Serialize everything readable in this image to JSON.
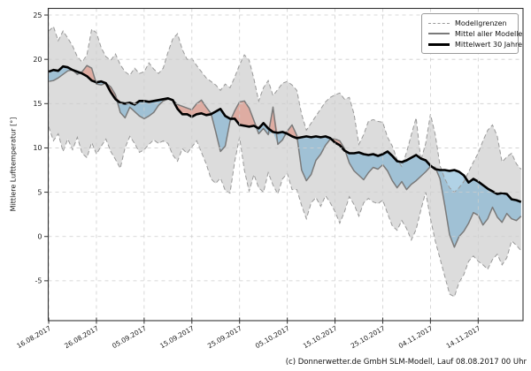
{
  "ylabel": "Mittlere Lufttemperatur [°]",
  "caption": "(c) Donnerwetter.de GmbH SLM-Modell, Lauf 08.08.2017 00 Uhr",
  "legend": {
    "items": [
      {
        "label": "Modellgrenzen",
        "style": "dashed-gray"
      },
      {
        "label": "Mittel aller Modelle",
        "style": "solid-gray"
      },
      {
        "label": "Mittelwert 30 Jahre",
        "style": "solid-black-thick"
      }
    ]
  },
  "chart_data": {
    "type": "line",
    "title": "",
    "xlabel": "",
    "ylabel": "Mittlere Lufttemperatur [°]",
    "x_unit": "days since 16.08.2017, one value per day",
    "x_tick_days": [
      0,
      10,
      20,
      30,
      40,
      50,
      60,
      70,
      80,
      90
    ],
    "x_tick_labels": [
      "16.08.2017",
      "26.08.2017",
      "05.09.2017",
      "15.09.2017",
      "25.09.2017",
      "05.10.2017",
      "15.10.2017",
      "25.10.2017",
      "04.11.2017",
      "14.11.2017"
    ],
    "y_ticks": [
      25,
      20,
      15,
      10,
      5,
      0,
      -5
    ],
    "ylim": [
      -9.5,
      25.75
    ],
    "xlim": [
      -0.1,
      99.4
    ],
    "grid": true,
    "legend_position": "upper right",
    "band_between": [
      "Modellgrenze oben",
      "Modellgrenze unten"
    ],
    "fill_rule": "blue where Mittel aller Modelle < Mittelwert 30 Jahre, red where above",
    "colors": {
      "band_fill": "#dcdcdc",
      "bound_line": "#999999",
      "mean_line": "#7a7a7a",
      "mean30_line": "#000000",
      "cold_fill": "#64a5cd",
      "warm_fill": "#e1705c",
      "grid": "#cdcdcd",
      "spine": "#333333"
    },
    "series": [
      {
        "name": "Modellgrenze oben",
        "values": [
          23.2,
          23.7,
          22.1,
          23.2,
          22.4,
          21.5,
          20.3,
          19.7,
          20.5,
          23.4,
          23.0,
          21.3,
          20.3,
          19.9,
          20.6,
          19.4,
          18.6,
          18.2,
          19.0,
          18.4,
          18.6,
          19.6,
          18.9,
          18.4,
          19.0,
          20.8,
          22.3,
          22.9,
          21.1,
          20.0,
          20.1,
          19.3,
          18.6,
          17.9,
          17.5,
          17.1,
          16.5,
          17.2,
          16.8,
          18.0,
          19.4,
          20.5,
          19.9,
          17.8,
          15.3,
          16.8,
          17.6,
          15.9,
          16.6,
          17.3,
          17.5,
          17.1,
          16.5,
          13.8,
          12.0,
          12.8,
          13.6,
          14.4,
          15.2,
          15.7,
          16.0,
          16.2,
          15.5,
          15.7,
          13.8,
          10.4,
          11.5,
          13.0,
          13.2,
          13.0,
          12.9,
          11.2,
          10.2,
          8.7,
          7.9,
          9.5,
          11.5,
          13.4,
          8.6,
          10.5,
          13.8,
          11.5,
          8.0,
          6.5,
          5.5,
          5.0,
          5.5,
          6.2,
          7.3,
          8.4,
          9.4,
          10.8,
          12.0,
          12.6,
          11.3,
          8.4,
          9.0,
          9.4,
          8.2,
          7.6
        ]
      },
      {
        "name": "Modellgrenze unten",
        "values": [
          12.4,
          10.8,
          11.6,
          9.6,
          11.0,
          9.8,
          11.2,
          9.4,
          8.9,
          10.6,
          9.3,
          10.2,
          11.0,
          9.6,
          8.7,
          7.7,
          10.0,
          11.3,
          10.5,
          9.5,
          9.8,
          10.4,
          10.9,
          10.5,
          10.8,
          10.5,
          9.2,
          8.5,
          9.9,
          9.4,
          10.1,
          10.8,
          9.5,
          8.2,
          6.5,
          6.0,
          6.6,
          5.2,
          4.9,
          8.5,
          11.2,
          7.5,
          5.1,
          7.0,
          5.5,
          5.0,
          7.2,
          5.8,
          4.8,
          6.5,
          7.1,
          5.3,
          5.3,
          3.5,
          2.0,
          3.8,
          4.4,
          3.4,
          4.6,
          3.8,
          2.8,
          1.5,
          2.8,
          4.5,
          3.6,
          2.3,
          3.8,
          4.3,
          3.9,
          3.7,
          4.1,
          2.6,
          1.2,
          0.7,
          1.8,
          0.9,
          -0.4,
          0.8,
          3.0,
          5.0,
          2.0,
          -0.5,
          -2.5,
          -4.5,
          -6.5,
          -6.8,
          -5.2,
          -4.3,
          -2.8,
          -2.2,
          -2.8,
          -3.2,
          -3.7,
          -2.6,
          -2.0,
          -3.2,
          -2.4,
          -0.5,
          -1.0,
          -1.6
        ]
      },
      {
        "name": "Mittel aller Modelle",
        "values": [
          17.5,
          17.6,
          17.9,
          18.3,
          18.7,
          18.8,
          18.3,
          18.6,
          19.3,
          19.0,
          17.2,
          17.1,
          17.3,
          16.9,
          16.0,
          14.0,
          13.4,
          14.6,
          14.1,
          13.6,
          13.3,
          13.6,
          14.0,
          14.8,
          15.3,
          15.5,
          15.4,
          14.9,
          14.7,
          14.5,
          14.3,
          15.0,
          15.4,
          14.6,
          13.9,
          11.8,
          9.6,
          10.2,
          13.0,
          14.2,
          15.2,
          15.3,
          14.5,
          13.1,
          11.6,
          12.2,
          11.5,
          14.6,
          10.4,
          10.9,
          11.9,
          12.6,
          11.4,
          7.5,
          6.3,
          7.0,
          8.6,
          9.3,
          10.3,
          11.0,
          11.0,
          10.8,
          9.9,
          8.3,
          7.4,
          6.9,
          6.4,
          7.2,
          7.8,
          7.6,
          8.1,
          7.4,
          6.3,
          5.5,
          6.2,
          5.3,
          5.9,
          6.3,
          6.8,
          7.3,
          7.9,
          7.8,
          6.5,
          3.5,
          0.2,
          -1.2,
          0.0,
          0.6,
          1.5,
          2.7,
          2.4,
          1.3,
          2.0,
          3.3,
          2.2,
          1.6,
          2.6,
          2.0,
          1.8,
          2.3
        ]
      },
      {
        "name": "Mittelwert 30 Jahre",
        "values": [
          18.6,
          18.8,
          18.7,
          19.2,
          19.1,
          18.8,
          18.6,
          18.4,
          18.1,
          17.6,
          17.4,
          17.5,
          17.3,
          16.3,
          15.5,
          15.1,
          15.0,
          15.1,
          14.9,
          15.3,
          15.3,
          15.2,
          15.3,
          15.4,
          15.5,
          15.6,
          15.4,
          14.4,
          13.8,
          13.8,
          13.5,
          13.8,
          13.9,
          13.7,
          13.8,
          14.1,
          14.4,
          13.6,
          13.3,
          13.3,
          12.6,
          12.5,
          12.4,
          12.5,
          12.2,
          12.8,
          12.2,
          11.8,
          11.7,
          11.8,
          11.6,
          11.3,
          11.1,
          11.2,
          11.3,
          11.2,
          11.3,
          11.2,
          11.3,
          11.1,
          10.6,
          10.3,
          9.7,
          9.4,
          9.4,
          9.5,
          9.3,
          9.2,
          9.3,
          9.1,
          9.3,
          9.6,
          9.1,
          8.5,
          8.4,
          8.6,
          8.9,
          9.2,
          8.8,
          8.6,
          8.0,
          7.6,
          7.5,
          7.5,
          7.4,
          7.5,
          7.3,
          6.9,
          6.1,
          6.5,
          6.2,
          5.8,
          5.4,
          5.1,
          4.8,
          4.9,
          4.8,
          4.2,
          4.1,
          3.9
        ]
      }
    ]
  }
}
